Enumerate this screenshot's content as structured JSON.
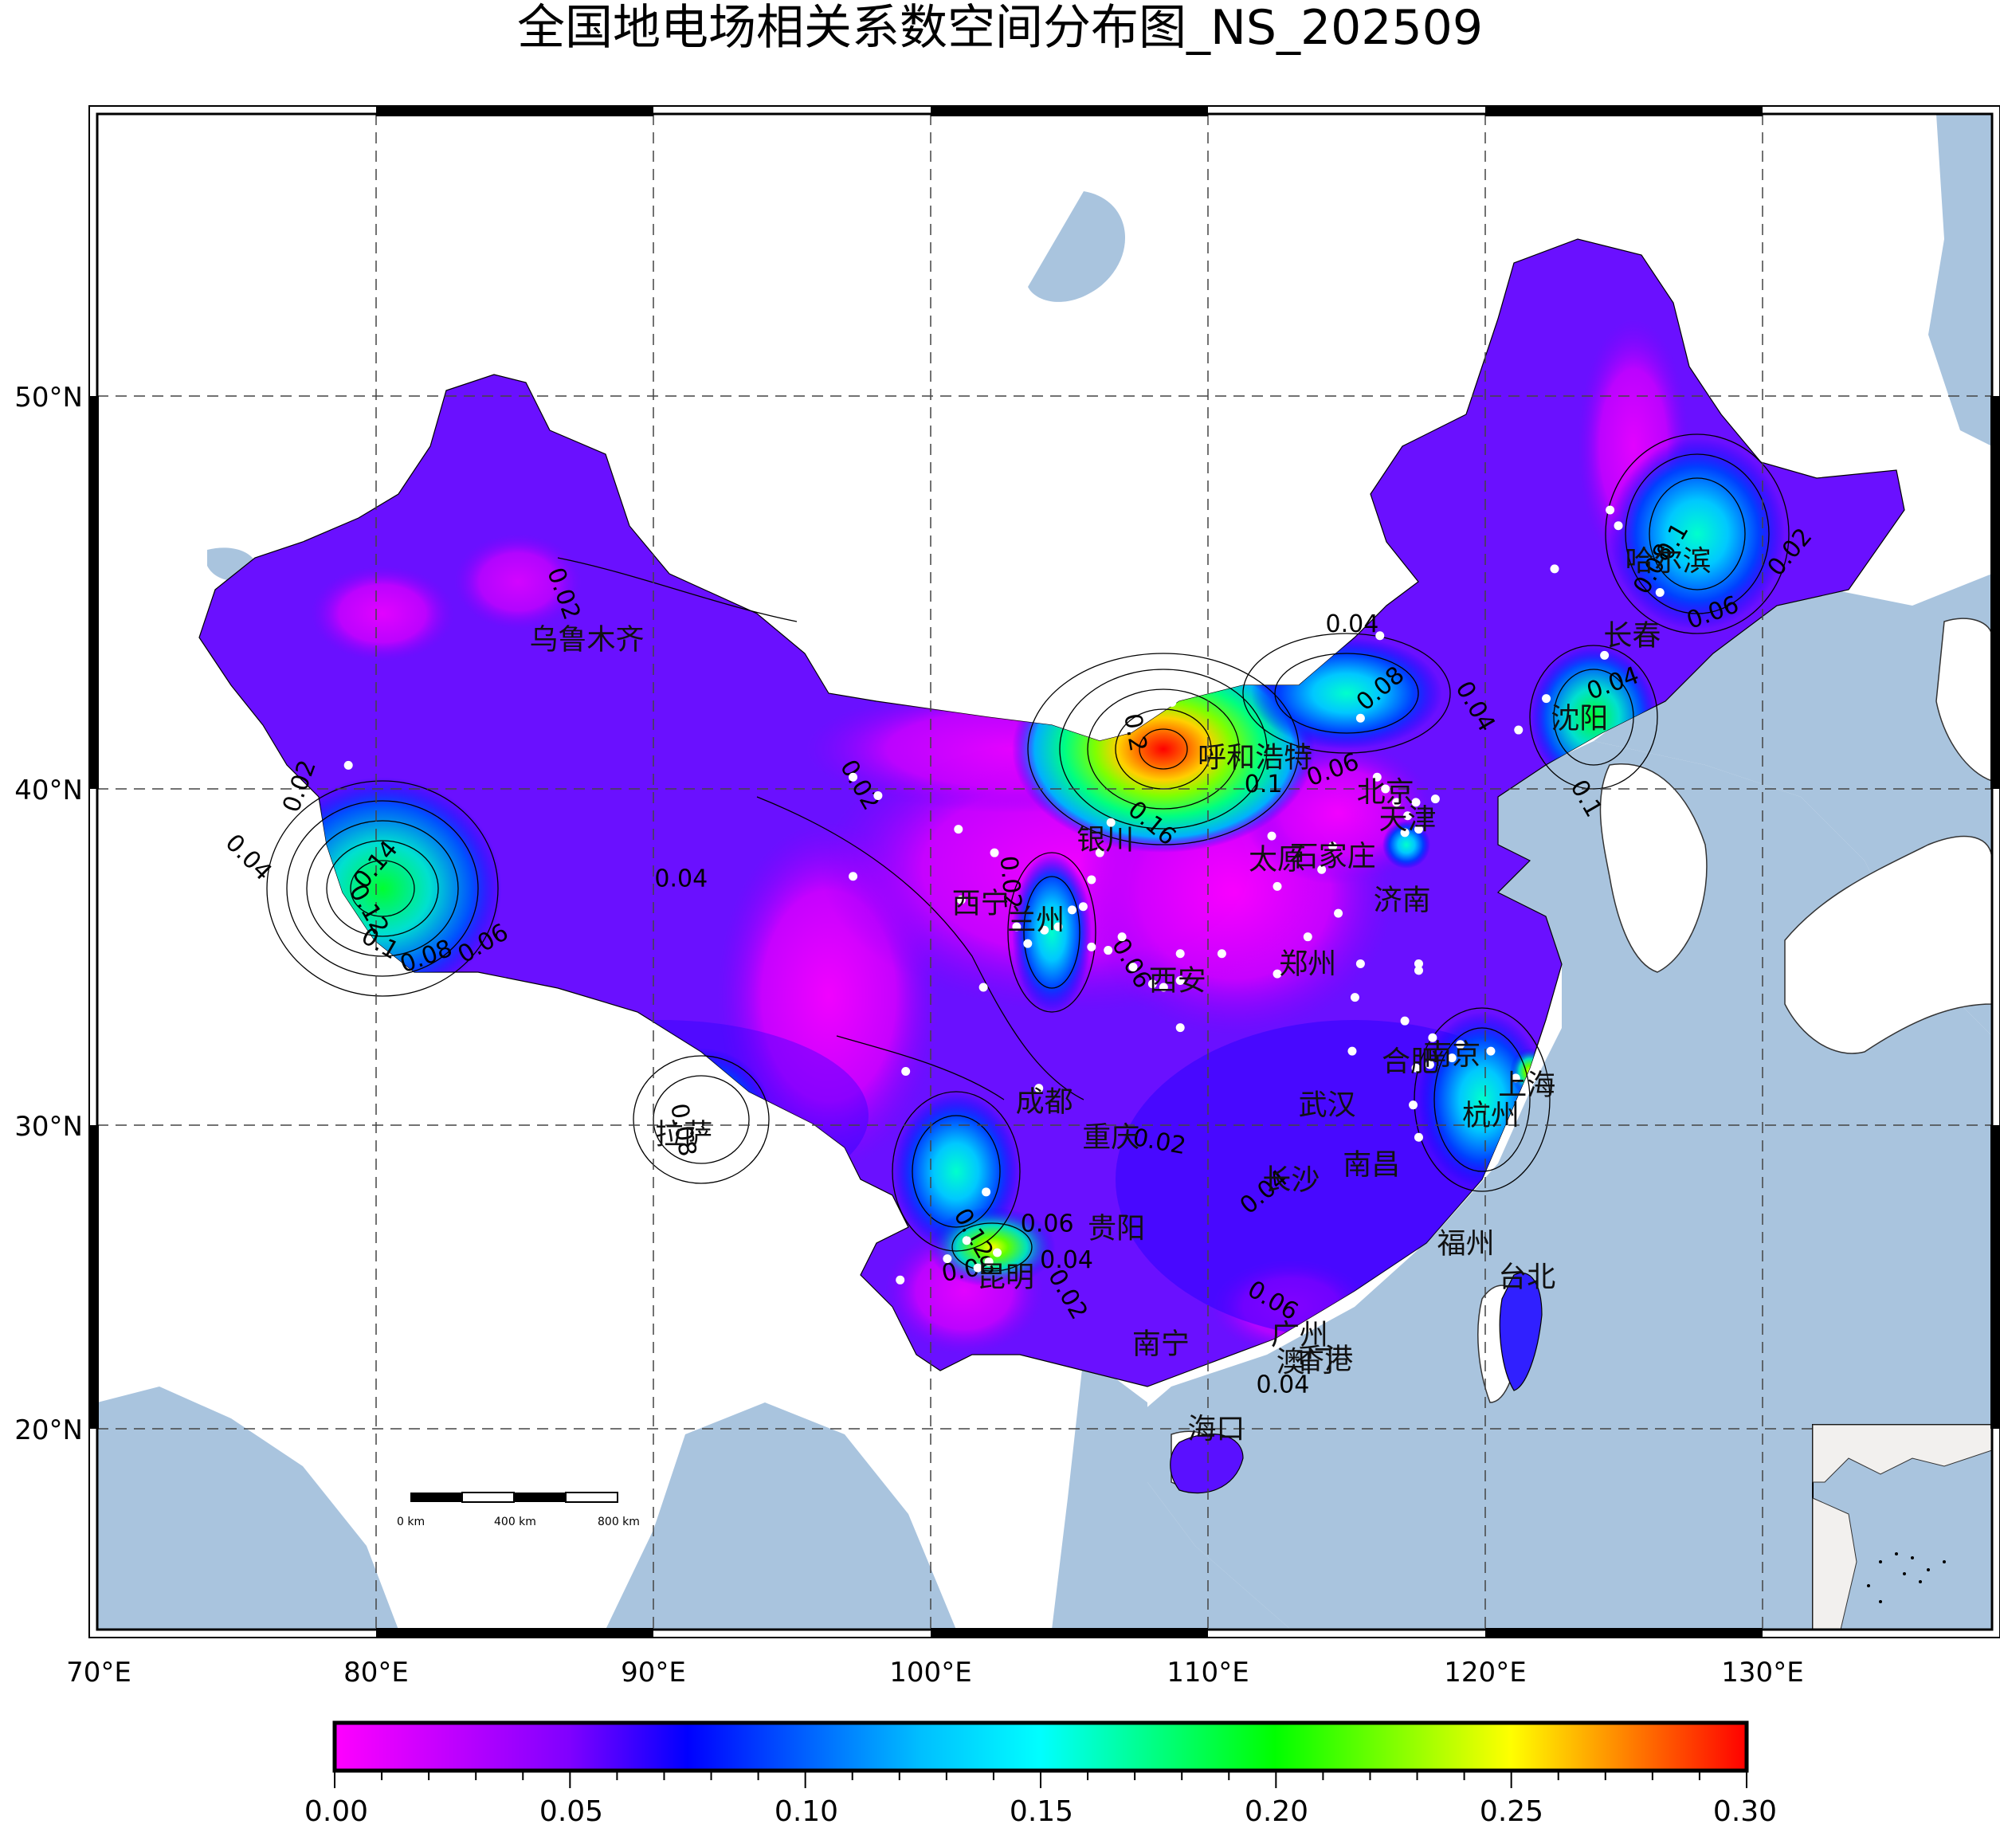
{
  "title": "全国地电场相关系数空间分布图_NS_202509",
  "colors": {
    "ocean": "#a9c4de",
    "land": "#ffffff",
    "grid": "#555555",
    "station": "#ffffff",
    "frame": "#000000"
  },
  "axes": {
    "lon_labels": [
      "70°E",
      "80°E",
      "90°E",
      "100°E",
      "110°E",
      "120°E",
      "130°E"
    ],
    "lat_labels": [
      "20°N",
      "30°N",
      "40°N",
      "50°N"
    ]
  },
  "colorbar": {
    "ticks": [
      "0.00",
      "0.05",
      "0.10",
      "0.15",
      "0.20",
      "0.25",
      "0.30"
    ],
    "range": [
      0.0,
      0.3
    ],
    "colormap": [
      "#ff00ff",
      "#8000ff",
      "#0000ff",
      "#00ffff",
      "#00ff00",
      "#ffff00",
      "#ff0000"
    ]
  },
  "scale_bar": {
    "labels": [
      "0 km",
      "400 km",
      "800 km"
    ]
  },
  "cities": [
    {
      "name": "乌鲁木齐",
      "lon": 87.6,
      "lat": 43.8
    },
    {
      "name": "哈尔滨",
      "lon": 126.6,
      "lat": 45.8
    },
    {
      "name": "长春",
      "lon": 125.3,
      "lat": 43.9
    },
    {
      "name": "沈阳",
      "lon": 123.4,
      "lat": 41.8
    },
    {
      "name": "呼和浩特",
      "lon": 111.7,
      "lat": 40.8
    },
    {
      "name": "北京",
      "lon": 116.4,
      "lat": 39.9
    },
    {
      "name": "天津",
      "lon": 117.2,
      "lat": 39.1
    },
    {
      "name": "银川",
      "lon": 106.3,
      "lat": 38.5
    },
    {
      "name": "石家庄",
      "lon": 114.5,
      "lat": 38.0
    },
    {
      "name": "太原",
      "lon": 112.5,
      "lat": 37.9
    },
    {
      "name": "济南",
      "lon": 117.0,
      "lat": 36.7
    },
    {
      "name": "西宁",
      "lon": 101.8,
      "lat": 36.6
    },
    {
      "name": "兰州",
      "lon": 103.8,
      "lat": 36.1
    },
    {
      "name": "郑州",
      "lon": 113.6,
      "lat": 34.8
    },
    {
      "name": "西安",
      "lon": 108.9,
      "lat": 34.3
    },
    {
      "name": "合肥",
      "lon": 117.3,
      "lat": 31.9
    },
    {
      "name": "南京",
      "lon": 118.8,
      "lat": 32.1
    },
    {
      "name": "上海",
      "lon": 121.5,
      "lat": 31.2
    },
    {
      "name": "成都",
      "lon": 104.1,
      "lat": 30.7
    },
    {
      "name": "武汉",
      "lon": 114.3,
      "lat": 30.6
    },
    {
      "name": "杭州",
      "lon": 120.2,
      "lat": 30.3
    },
    {
      "name": "拉萨",
      "lon": 91.1,
      "lat": 29.7
    },
    {
      "name": "重庆",
      "lon": 106.5,
      "lat": 29.6
    },
    {
      "name": "南昌",
      "lon": 115.9,
      "lat": 28.7
    },
    {
      "name": "长沙",
      "lon": 113.0,
      "lat": 28.2
    },
    {
      "name": "贵阳",
      "lon": 106.7,
      "lat": 26.6
    },
    {
      "name": "福州",
      "lon": 119.3,
      "lat": 26.1
    },
    {
      "name": "昆明",
      "lon": 102.7,
      "lat": 25.0
    },
    {
      "name": "台北",
      "lon": 121.5,
      "lat": 25.0
    },
    {
      "name": "广州",
      "lon": 113.3,
      "lat": 23.1
    },
    {
      "name": "南宁",
      "lon": 108.3,
      "lat": 22.8
    },
    {
      "name": "澳门",
      "lon": 113.5,
      "lat": 22.2
    },
    {
      "name": "香港",
      "lon": 114.2,
      "lat": 22.3
    },
    {
      "name": "海口",
      "lon": 110.3,
      "lat": 20.0
    }
  ],
  "contour_labels": [
    {
      "text": "0.02",
      "lon": 86.5,
      "lat": 44.9,
      "rot": 70
    },
    {
      "text": "0.02",
      "lon": 77.5,
      "lat": 40.0,
      "rot": -70
    },
    {
      "text": "0.04",
      "lon": 75.2,
      "lat": 37.8,
      "rot": 45
    },
    {
      "text": "0.14",
      "lon": 80.2,
      "lat": 37.6,
      "rot": -50
    },
    {
      "text": "0.12",
      "lon": 79.5,
      "lat": 36.3,
      "rot": 60
    },
    {
      "text": "0.1",
      "lon": 80.0,
      "lat": 35.2,
      "rot": 30
    },
    {
      "text": "0.08",
      "lon": 81.9,
      "lat": 34.8,
      "rot": -20
    },
    {
      "text": "0.06",
      "lon": 84.0,
      "lat": 35.2,
      "rot": -30
    },
    {
      "text": "0.04",
      "lon": 91.0,
      "lat": 37.1,
      "rot": 0
    },
    {
      "text": "0.02",
      "lon": 97.2,
      "lat": 40.0,
      "rot": 60
    },
    {
      "text": "0.02",
      "lon": 102.6,
      "lat": 37.2,
      "rot": 85
    },
    {
      "text": "0.06",
      "lon": 107.0,
      "lat": 34.7,
      "rot": 60
    },
    {
      "text": "0.02",
      "lon": 108.2,
      "lat": 29.2,
      "rot": 10
    },
    {
      "text": "0.06",
      "lon": 104.2,
      "lat": 26.5,
      "rot": 0
    },
    {
      "text": "0.04",
      "lon": 104.9,
      "lat": 25.3,
      "rot": 0
    },
    {
      "text": "0.02",
      "lon": 104.7,
      "lat": 24.3,
      "rot": 60
    },
    {
      "text": "0.12",
      "lon": 101.3,
      "lat": 26.3,
      "rot": 60
    },
    {
      "text": "0.08",
      "lon": 101.4,
      "lat": 25.0,
      "rot": -10
    },
    {
      "text": "0.2",
      "lon": 107.1,
      "lat": 41.4,
      "rot": 80
    },
    {
      "text": "0.16",
      "lon": 107.8,
      "lat": 38.8,
      "rot": 40
    },
    {
      "text": "0.1",
      "lon": 112.0,
      "lat": 39.9,
      "rot": 0
    },
    {
      "text": "0.06",
      "lon": 114.6,
      "lat": 40.3,
      "rot": -20
    },
    {
      "text": "0.04",
      "lon": 115.2,
      "lat": 44.0,
      "rot": 0
    },
    {
      "text": "0.08",
      "lon": 116.4,
      "lat": 42.4,
      "rot": -40
    },
    {
      "text": "0.04",
      "lon": 119.4,
      "lat": 42.0,
      "rot": 60
    },
    {
      "text": "0.04",
      "lon": 124.7,
      "lat": 42.5,
      "rot": -20
    },
    {
      "text": "0.06",
      "lon": 128.3,
      "lat": 44.3,
      "rot": -20
    },
    {
      "text": "0.02",
      "lon": 131.2,
      "lat": 45.9,
      "rot": -50
    },
    {
      "text": "0.1",
      "lon": 127.0,
      "lat": 46.2,
      "rot": -60
    },
    {
      "text": "0.08",
      "lon": 126.3,
      "lat": 45.5,
      "rot": -60
    },
    {
      "text": "0.1",
      "lon": 123.4,
      "lat": 39.6,
      "rot": 60
    },
    {
      "text": "0.06",
      "lon": 112.2,
      "lat": 24.0,
      "rot": 30
    },
    {
      "text": "0.04",
      "lon": 112.7,
      "lat": 21.2,
      "rot": 0
    },
    {
      "text": "0.04",
      "lon": 112.2,
      "lat": 27.6,
      "rot": -40
    },
    {
      "text": "0.08",
      "lon": 90.8,
      "lat": 29.8,
      "rot": 80
    }
  ],
  "stations": [
    [
      79.0,
      40.6
    ],
    [
      97.2,
      40.3
    ],
    [
      98.1,
      39.8
    ],
    [
      97.2,
      37.4
    ],
    [
      101.0,
      38.8
    ],
    [
      102.3,
      38.1
    ],
    [
      101.1,
      36.7
    ],
    [
      101.9,
      34.1
    ],
    [
      103.1,
      35.9
    ],
    [
      103.5,
      35.4
    ],
    [
      104.1,
      35.8
    ],
    [
      104.6,
      35.9
    ],
    [
      105.1,
      36.4
    ],
    [
      105.5,
      36.5
    ],
    [
      105.8,
      37.3
    ],
    [
      106.1,
      38.1
    ],
    [
      106.5,
      39.0
    ],
    [
      105.8,
      35.3
    ],
    [
      106.4,
      35.2
    ],
    [
      106.9,
      35.6
    ],
    [
      107.3,
      34.7
    ],
    [
      108.0,
      34.2
    ],
    [
      108.4,
      34.1
    ],
    [
      109.0,
      34.3
    ],
    [
      109.0,
      35.1
    ],
    [
      109.0,
      32.9
    ],
    [
      108.7,
      42.2
    ],
    [
      110.5,
      35.1
    ],
    [
      112.3,
      38.6
    ],
    [
      112.5,
      37.1
    ],
    [
      112.5,
      34.5
    ],
    [
      113.6,
      35.6
    ],
    [
      114.1,
      37.6
    ],
    [
      114.5,
      38.3
    ],
    [
      114.7,
      36.3
    ],
    [
      115.5,
      34.8
    ],
    [
      115.5,
      41.8
    ],
    [
      116.1,
      40.3
    ],
    [
      116.4,
      40.0
    ],
    [
      116.8,
      39.6
    ],
    [
      117.2,
      39.2
    ],
    [
      117.5,
      39.6
    ],
    [
      117.1,
      38.7
    ],
    [
      117.6,
      38.8
    ],
    [
      118.2,
      39.7
    ],
    [
      116.2,
      43.9
    ],
    [
      115.3,
      33.8
    ],
    [
      117.1,
      33.1
    ],
    [
      117.6,
      34.6
    ],
    [
      117.6,
      34.8
    ],
    [
      118.1,
      32.6
    ],
    [
      117.5,
      31.7
    ],
    [
      118.0,
      31.8
    ],
    [
      118.8,
      32.0
    ],
    [
      119.1,
      32.4
    ],
    [
      120.2,
      32.2
    ],
    [
      121.1,
      31.4
    ],
    [
      117.4,
      30.6
    ],
    [
      117.6,
      29.6
    ],
    [
      115.2,
      32.2
    ],
    [
      103.9,
      31.1
    ],
    [
      99.1,
      31.6
    ],
    [
      102.0,
      27.8
    ],
    [
      101.3,
      26.2
    ],
    [
      101.7,
      25.3
    ],
    [
      100.6,
      25.6
    ],
    [
      102.1,
      25.5
    ],
    [
      102.4,
      25.8
    ],
    [
      98.9,
      24.9
    ],
    [
      122.2,
      42.3
    ],
    [
      122.5,
      45.6
    ],
    [
      121.2,
      41.5
    ],
    [
      124.8,
      46.7
    ],
    [
      126.3,
      45.0
    ],
    [
      124.3,
      43.4
    ],
    [
      124.5,
      47.1
    ]
  ]
}
